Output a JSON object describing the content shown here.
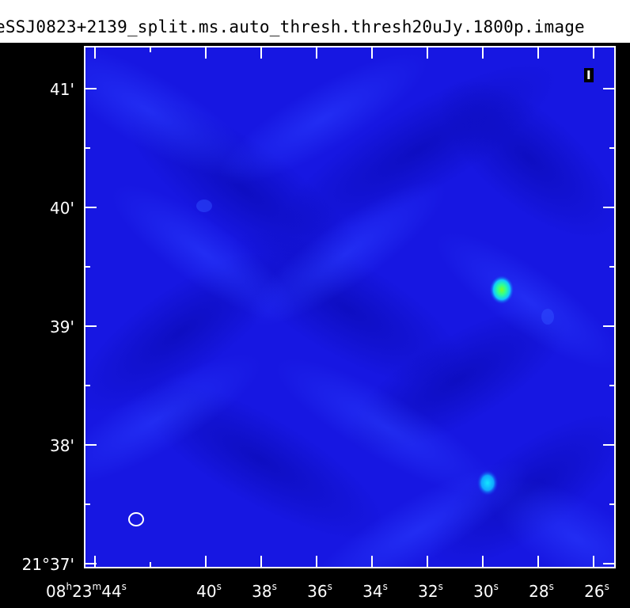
{
  "title": "eSSJ0823+2139_split.ms.auto_thresh.thresh20uJy.1800p.image",
  "stokes_label": "I",
  "y_axis": {
    "labels": [
      {
        "text": "41'",
        "sup": ""
      },
      {
        "text": "40'",
        "sup": ""
      },
      {
        "text": "39'",
        "sup": ""
      },
      {
        "text": "38'",
        "sup": ""
      },
      {
        "text": "21°37'",
        "sup": ""
      }
    ]
  },
  "x_axis": {
    "labels": [
      {
        "main": "08",
        "h": "h",
        "mid": "23",
        "m": "m",
        "sec": "44",
        "s": "s"
      },
      {
        "sec": "40",
        "s": "s"
      },
      {
        "sec": "38",
        "s": "s"
      },
      {
        "sec": "36",
        "s": "s"
      },
      {
        "sec": "34",
        "s": "s"
      },
      {
        "sec": "32",
        "s": "s"
      },
      {
        "sec": "30",
        "s": "s"
      },
      {
        "sec": "28",
        "s": "s"
      },
      {
        "sec": "26",
        "s": "s"
      }
    ]
  },
  "colors": {
    "background": "#1414e6",
    "frame": "#ffffff",
    "source_core": "#33ff66",
    "source_halo": "#00ccff"
  },
  "sources": [
    {
      "name": "bright-source",
      "peak": "green"
    },
    {
      "name": "faint-source",
      "peak": "cyan"
    }
  ],
  "beam": "ellipse"
}
